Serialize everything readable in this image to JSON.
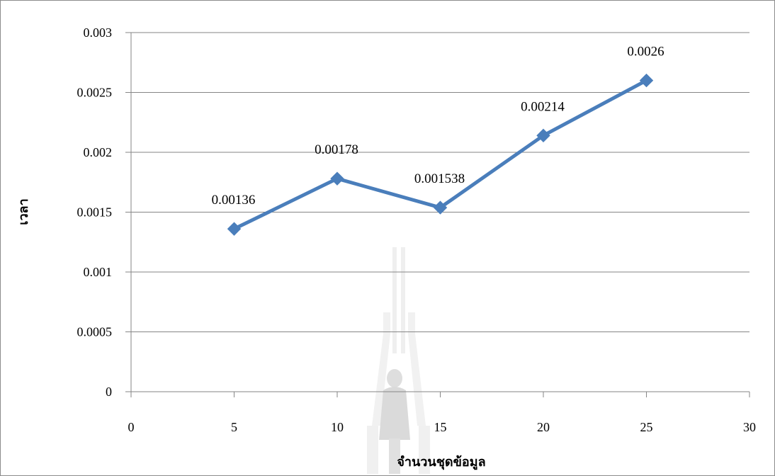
{
  "chart_data": {
    "type": "scatter",
    "mode": "lines+markers",
    "title": "",
    "xlabel": "จำนวนชุดข้อมูล",
    "ylabel": "เวลา",
    "xlim": [
      0,
      30
    ],
    "ylim": [
      0,
      0.003
    ],
    "x_ticks": [
      "0",
      "5",
      "10",
      "15",
      "20",
      "25",
      "30"
    ],
    "y_ticks": [
      "0",
      "0.0005",
      "0.001",
      "0.0015",
      "0.002",
      "0.0025",
      "0.003"
    ],
    "grid": "horizontal",
    "legend": "none",
    "series": [
      {
        "x": [
          5,
          10,
          15,
          20,
          25
        ],
        "y": [
          0.00136,
          0.00178,
          0.001538,
          0.00214,
          0.0026
        ],
        "labels": [
          "0.00136",
          "0.00178",
          "0.001538",
          "0.00214",
          "0.0026"
        ],
        "color": "#4a7ebb",
        "marker": "diamond"
      }
    ],
    "gridline_color": "#868686",
    "watermark_color": "#d9d9d9"
  }
}
